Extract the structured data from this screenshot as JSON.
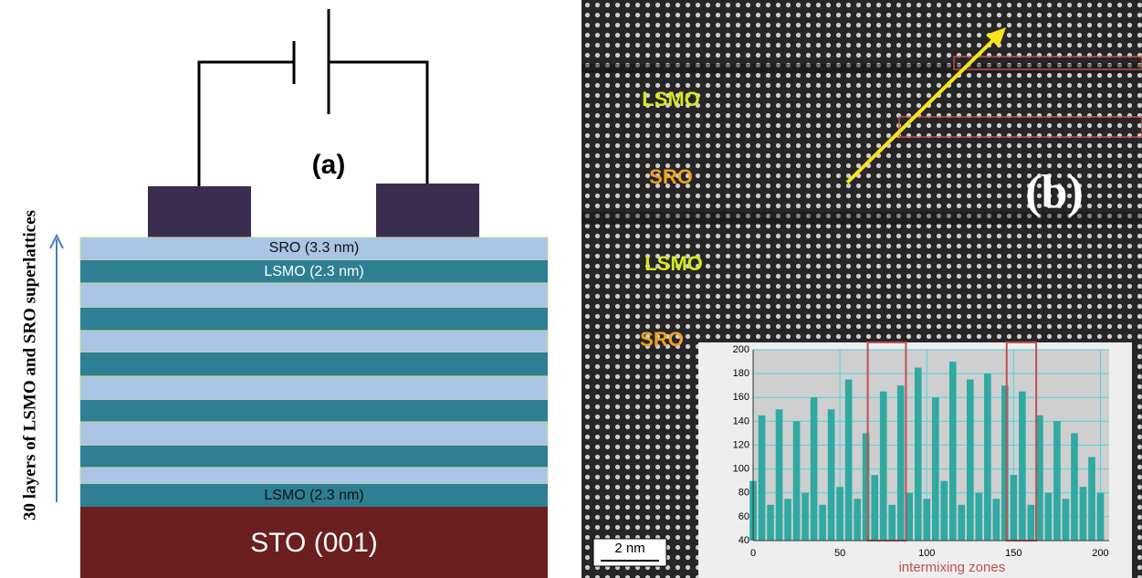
{
  "panel_a": {
    "label": "(a)",
    "side_label": "30 layers of LSMO and SRO superlattices",
    "top_layer": "SRO (3.3 nm)",
    "second_layer": "LSMO (2.3 nm)",
    "bottom_layer": "LSMO (2.3 nm)",
    "substrate": "STO (001)"
  },
  "panel_b": {
    "label": "(b)",
    "layer_labels": [
      "LSMO",
      "SRO",
      "LSMO",
      "SRO"
    ],
    "scale_bar": "2 nm"
  },
  "chart_data": {
    "type": "bar",
    "color": "#2fa9a1",
    "x": [
      0,
      5,
      10,
      15,
      20,
      25,
      30,
      35,
      40,
      45,
      50,
      55,
      60,
      65,
      70,
      75,
      80,
      85,
      90,
      95,
      100,
      105,
      110,
      115,
      120,
      125,
      130,
      135,
      140,
      145,
      150,
      155,
      160,
      165,
      170,
      175,
      180,
      185,
      190,
      195,
      200
    ],
    "values": [
      90,
      145,
      70,
      150,
      75,
      140,
      80,
      160,
      70,
      150,
      85,
      175,
      75,
      130,
      95,
      165,
      70,
      170,
      80,
      185,
      75,
      160,
      90,
      190,
      70,
      175,
      80,
      180,
      75,
      170,
      95,
      165,
      70,
      145,
      80,
      140,
      75,
      130,
      85,
      110,
      80
    ],
    "xlim": [
      0,
      205
    ],
    "ylim": [
      40,
      200
    ],
    "xticks": [
      0,
      50,
      100,
      150,
      200
    ],
    "yticks": [
      40,
      60,
      80,
      100,
      120,
      140,
      160,
      180,
      200
    ],
    "grid": true,
    "highlight_ranges": [
      [
        66,
        88
      ],
      [
        146,
        163
      ]
    ],
    "highlight_label": "intermixing zones"
  }
}
